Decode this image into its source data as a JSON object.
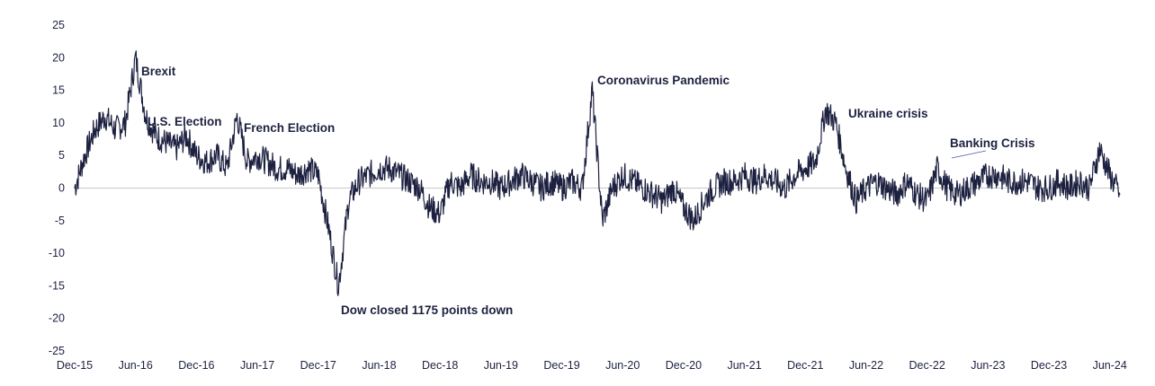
{
  "chart_data": {
    "type": "line",
    "title": "",
    "xlabel": "",
    "ylabel": "",
    "ylim": [
      -25,
      25
    ],
    "yticks": [
      25,
      20,
      15,
      10,
      5,
      0,
      -5,
      -10,
      -15,
      -20,
      -25
    ],
    "ytick_labels": [
      "25",
      "20",
      "15",
      "10",
      "5",
      "0",
      "-5",
      "-10",
      "-15",
      "-20",
      "-25"
    ],
    "x_range": [
      "2015-12",
      "2024-07"
    ],
    "xtick_labels": [
      "Dec-15",
      "Jun-16",
      "Dec-16",
      "Jun-17",
      "Dec-17",
      "Jun-18",
      "Dec-18",
      "Jun-19",
      "Dec-19",
      "Jun-20",
      "Dec-20",
      "Jun-21",
      "Dec-21",
      "Jun-22",
      "Dec-22",
      "Jun-23",
      "Dec-23",
      "Jun-24"
    ],
    "grid": false,
    "zero_line": true,
    "line_color": "#1d2140",
    "series": [
      {
        "x": [
          "2015-12",
          "2016-01",
          "2016-02",
          "2016-03",
          "2016-04",
          "2016-05",
          "2016-06",
          "2016-07",
          "2016-08",
          "2016-09",
          "2016-10",
          "2016-11",
          "2016-12",
          "2017-01",
          "2017-02",
          "2017-03",
          "2017-04",
          "2017-05",
          "2017-06",
          "2017-07",
          "2017-08",
          "2017-09",
          "2017-10",
          "2017-11",
          "2017-12",
          "2018-01",
          "2018-02",
          "2018-03",
          "2018-04",
          "2018-05",
          "2018-06",
          "2018-07",
          "2018-08",
          "2018-09",
          "2018-10",
          "2018-11",
          "2018-12",
          "2019-01",
          "2019-02",
          "2019-03",
          "2019-04",
          "2019-05",
          "2019-06",
          "2019-07",
          "2019-08",
          "2019-09",
          "2019-10",
          "2019-11",
          "2019-12",
          "2020-01",
          "2020-02",
          "2020-03",
          "2020-04",
          "2020-05",
          "2020-06",
          "2020-07",
          "2020-08",
          "2020-09",
          "2020-10",
          "2020-11",
          "2020-12",
          "2021-01",
          "2021-02",
          "2021-03",
          "2021-04",
          "2021-05",
          "2021-06",
          "2021-07",
          "2021-08",
          "2021-09",
          "2021-10",
          "2021-11",
          "2021-12",
          "2022-01",
          "2022-02",
          "2022-03",
          "2022-04",
          "2022-05",
          "2022-06",
          "2022-07",
          "2022-08",
          "2022-09",
          "2022-10",
          "2022-11",
          "2022-12",
          "2023-01",
          "2023-02",
          "2023-03",
          "2023-04",
          "2023-05",
          "2023-06",
          "2023-07",
          "2023-08",
          "2023-09",
          "2023-10",
          "2023-11",
          "2023-12",
          "2024-01",
          "2024-02",
          "2024-03",
          "2024-04",
          "2024-05",
          "2024-06",
          "2024-07"
        ],
        "values": [
          0,
          5,
          9,
          11,
          9,
          10,
          20,
          11,
          8,
          7,
          6,
          8,
          5,
          4,
          5,
          3,
          11,
          4,
          5,
          4,
          3,
          3,
          2,
          3,
          2,
          -6,
          -15,
          -2,
          1,
          2,
          3,
          3,
          2,
          1,
          0,
          -3,
          -4,
          1,
          0,
          2,
          1,
          1,
          0,
          1,
          2,
          1,
          0,
          1,
          0,
          1,
          0,
          15,
          -5,
          0,
          2,
          1,
          0,
          -1,
          -2,
          0,
          -3,
          -5,
          -2,
          0,
          1,
          1,
          2,
          1,
          2,
          1,
          0,
          2,
          3,
          4,
          12,
          10,
          3,
          -2,
          0,
          1,
          0,
          -1,
          1,
          -1,
          -2,
          3,
          0,
          -1,
          0,
          1,
          2,
          2,
          1,
          1,
          1,
          0,
          0,
          1,
          0,
          1,
          0,
          6,
          2,
          -1
        ]
      }
    ],
    "annotations": [
      {
        "text": "Brexit",
        "x": "2016-06"
      },
      {
        "text": "U.S. Election",
        "x": "2016-11"
      },
      {
        "text": "French Election",
        "x": "2017-04"
      },
      {
        "text": "Dow closed 1175 points down",
        "x": "2018-02"
      },
      {
        "text": "Coronavirus Pandemic",
        "x": "2020-03"
      },
      {
        "text": "Ukraine crisis",
        "x": "2022-03"
      },
      {
        "text": "Banking Crisis",
        "x": "2023-03"
      }
    ]
  }
}
